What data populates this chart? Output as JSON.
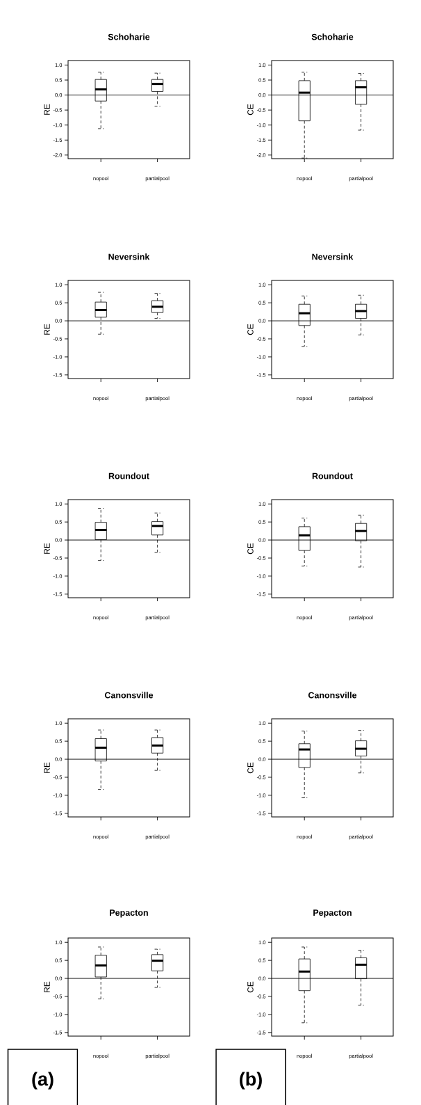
{
  "chart_data": [
    {
      "type": "box",
      "title": "Schoharie",
      "ylabel": "RE",
      "categories": [
        "nopool",
        "partialpool"
      ],
      "ylim": [
        -2.12,
        1.15
      ],
      "yticks": [
        {
          "value": -2.0,
          "label": "-2.0"
        },
        {
          "value": -1.5,
          "label": "-1.5"
        },
        {
          "value": -1.0,
          "label": "-1.0"
        },
        {
          "value": -0.5,
          "label": "-0.5"
        },
        {
          "value": 0.0,
          "label": "0.0"
        },
        {
          "value": 0.5,
          "label": "0.5"
        },
        {
          "value": 1.0,
          "label": "1.0"
        }
      ],
      "ref_lines": [
        {
          "axis": "y",
          "value": 0
        }
      ],
      "boxes": [
        {
          "low": -1.12,
          "q1": -0.2,
          "median": 0.19,
          "q3": 0.52,
          "high": 0.76
        },
        {
          "low": -0.37,
          "q1": 0.12,
          "median": 0.37,
          "q3": 0.52,
          "high": 0.73
        }
      ]
    },
    {
      "type": "box",
      "title": "Schoharie",
      "ylabel": "CE",
      "categories": [
        "nopool",
        "partialpool"
      ],
      "ylim": [
        -2.12,
        1.15
      ],
      "yticks": [
        {
          "value": -2.0,
          "label": "-2.0"
        },
        {
          "value": -1.5,
          "label": "-1.5"
        },
        {
          "value": -1.0,
          "label": "-1.0"
        },
        {
          "value": -0.5,
          "label": "-0.5"
        },
        {
          "value": 0.0,
          "label": "0.0"
        },
        {
          "value": 0.5,
          "label": "0.5"
        },
        {
          "value": 1.0,
          "label": "1.0"
        }
      ],
      "ref_lines": [
        {
          "axis": "y",
          "value": 0
        }
      ],
      "boxes": [
        {
          "low": -2.1,
          "q1": -0.86,
          "median": 0.08,
          "q3": 0.48,
          "high": 0.76
        },
        {
          "low": -1.17,
          "q1": -0.31,
          "median": 0.26,
          "q3": 0.48,
          "high": 0.72
        }
      ]
    },
    {
      "type": "box",
      "title": "Neversink",
      "ylabel": "RE",
      "categories": [
        "nopool",
        "partialpool"
      ],
      "ylim": [
        -1.6,
        1.12
      ],
      "yticks": [
        {
          "value": -1.5,
          "label": "-1.5"
        },
        {
          "value": -1.0,
          "label": "-1.0"
        },
        {
          "value": -0.5,
          "label": "-0.5"
        },
        {
          "value": 0.0,
          "label": "0.0"
        },
        {
          "value": 0.5,
          "label": "0.5"
        },
        {
          "value": 1.0,
          "label": "1.0"
        }
      ],
      "ref_lines": [
        {
          "axis": "y",
          "value": 0
        }
      ],
      "boxes": [
        {
          "low": -0.37,
          "q1": 0.1,
          "median": 0.3,
          "q3": 0.52,
          "high": 0.79
        },
        {
          "low": 0.07,
          "q1": 0.23,
          "median": 0.39,
          "q3": 0.56,
          "high": 0.76
        }
      ]
    },
    {
      "type": "box",
      "title": "Neversink",
      "ylabel": "CE",
      "categories": [
        "nopool",
        "partialpool"
      ],
      "ylim": [
        -1.6,
        1.12
      ],
      "yticks": [
        {
          "value": -1.5,
          "label": "-1.5"
        },
        {
          "value": -1.0,
          "label": "-1.0"
        },
        {
          "value": -0.5,
          "label": "-0.5"
        },
        {
          "value": 0.0,
          "label": "0.0"
        },
        {
          "value": 0.5,
          "label": "0.5"
        },
        {
          "value": 1.0,
          "label": "1.0"
        }
      ],
      "ref_lines": [
        {
          "axis": "y",
          "value": 0
        }
      ],
      "boxes": [
        {
          "low": -0.71,
          "q1": -0.13,
          "median": 0.21,
          "q3": 0.46,
          "high": 0.69
        },
        {
          "low": -0.39,
          "q1": 0.07,
          "median": 0.27,
          "q3": 0.46,
          "high": 0.71
        }
      ]
    },
    {
      "type": "box",
      "title": "Roundout",
      "ylabel": "RE",
      "categories": [
        "nopool",
        "partialpool"
      ],
      "ylim": [
        -1.6,
        1.12
      ],
      "yticks": [
        {
          "value": -1.5,
          "label": "-1.5"
        },
        {
          "value": -1.0,
          "label": "-1.0"
        },
        {
          "value": -0.5,
          "label": "-0.5"
        },
        {
          "value": 0.0,
          "label": "0.0"
        },
        {
          "value": 0.5,
          "label": "0.5"
        },
        {
          "value": 1.0,
          "label": "1.0"
        }
      ],
      "ref_lines": [
        {
          "axis": "y",
          "value": 0
        }
      ],
      "boxes": [
        {
          "low": -0.57,
          "q1": 0.01,
          "median": 0.28,
          "q3": 0.49,
          "high": 0.88
        },
        {
          "low": -0.34,
          "q1": 0.14,
          "median": 0.39,
          "q3": 0.51,
          "high": 0.75
        }
      ]
    },
    {
      "type": "box",
      "title": "Roundout",
      "ylabel": "CE",
      "categories": [
        "nopool",
        "partialpool"
      ],
      "ylim": [
        -1.6,
        1.12
      ],
      "yticks": [
        {
          "value": -1.5,
          "label": "-1.5"
        },
        {
          "value": -1.0,
          "label": "-1.0"
        },
        {
          "value": -0.5,
          "label": "-0.5"
        },
        {
          "value": 0.0,
          "label": "0.0"
        },
        {
          "value": 0.5,
          "label": "0.5"
        },
        {
          "value": 1.0,
          "label": "1.0"
        }
      ],
      "ref_lines": [
        {
          "axis": "y",
          "value": 0
        }
      ],
      "boxes": [
        {
          "low": -0.72,
          "q1": -0.29,
          "median": 0.13,
          "q3": 0.37,
          "high": 0.61
        },
        {
          "low": -0.75,
          "q1": -0.02,
          "median": 0.25,
          "q3": 0.46,
          "high": 0.69
        }
      ]
    },
    {
      "type": "box",
      "title": "Canonsville",
      "ylabel": "RE",
      "categories": [
        "nopool",
        "partialpool"
      ],
      "ylim": [
        -1.6,
        1.12
      ],
      "yticks": [
        {
          "value": -1.5,
          "label": "-1.5"
        },
        {
          "value": -1.0,
          "label": "-1.0"
        },
        {
          "value": -0.5,
          "label": "-0.5"
        },
        {
          "value": 0.0,
          "label": "0.0"
        },
        {
          "value": 0.5,
          "label": "0.5"
        },
        {
          "value": 1.0,
          "label": "1.0"
        }
      ],
      "ref_lines": [
        {
          "axis": "y",
          "value": 0
        }
      ],
      "boxes": [
        {
          "low": -0.84,
          "q1": -0.05,
          "median": 0.32,
          "q3": 0.57,
          "high": 0.81
        },
        {
          "low": -0.31,
          "q1": 0.17,
          "median": 0.38,
          "q3": 0.6,
          "high": 0.81
        }
      ]
    },
    {
      "type": "box",
      "title": "Canonsville",
      "ylabel": "CE",
      "categories": [
        "nopool",
        "partialpool"
      ],
      "ylim": [
        -1.6,
        1.12
      ],
      "yticks": [
        {
          "value": -1.5,
          "label": "-1.5"
        },
        {
          "value": -1.0,
          "label": "-1.0"
        },
        {
          "value": -0.5,
          "label": "-0.5"
        },
        {
          "value": 0.0,
          "label": "0.0"
        },
        {
          "value": 0.5,
          "label": "0.5"
        },
        {
          "value": 1.0,
          "label": "1.0"
        }
      ],
      "ref_lines": [
        {
          "axis": "y",
          "value": 0
        }
      ],
      "boxes": [
        {
          "low": -1.07,
          "q1": -0.23,
          "median": 0.27,
          "q3": 0.43,
          "high": 0.78
        },
        {
          "low": -0.38,
          "q1": 0.09,
          "median": 0.29,
          "q3": 0.51,
          "high": 0.8
        }
      ]
    },
    {
      "type": "box",
      "title": "Pepacton",
      "ylabel": "RE",
      "categories": [
        "nopool",
        "partialpool"
      ],
      "ylim": [
        -1.6,
        1.12
      ],
      "yticks": [
        {
          "value": -1.5,
          "label": "-1.5"
        },
        {
          "value": -1.0,
          "label": "-1.0"
        },
        {
          "value": -0.5,
          "label": "-0.5"
        },
        {
          "value": 0.0,
          "label": "0.0"
        },
        {
          "value": 0.5,
          "label": "0.5"
        },
        {
          "value": 1.0,
          "label": "1.0"
        }
      ],
      "ref_lines": [
        {
          "axis": "y",
          "value": 0
        }
      ],
      "annotations": [
        "(a)"
      ],
      "boxes": [
        {
          "low": -0.57,
          "q1": 0.04,
          "median": 0.36,
          "q3": 0.64,
          "high": 0.87
        },
        {
          "low": -0.25,
          "q1": 0.21,
          "median": 0.49,
          "q3": 0.66,
          "high": 0.81
        }
      ]
    },
    {
      "type": "box",
      "title": "Pepacton",
      "ylabel": "CE",
      "categories": [
        "nopool",
        "partialpool"
      ],
      "ylim": [
        -1.6,
        1.12
      ],
      "yticks": [
        {
          "value": -1.5,
          "label": "-1.5"
        },
        {
          "value": -1.0,
          "label": "-1.0"
        },
        {
          "value": -0.5,
          "label": "-0.5"
        },
        {
          "value": 0.0,
          "label": "0.0"
        },
        {
          "value": 0.5,
          "label": "0.5"
        },
        {
          "value": 1.0,
          "label": "1.0"
        }
      ],
      "ref_lines": [
        {
          "axis": "y",
          "value": 0
        }
      ],
      "annotations": [
        "(b)"
      ],
      "boxes": [
        {
          "low": -1.23,
          "q1": -0.34,
          "median": 0.19,
          "q3": 0.54,
          "high": 0.87
        },
        {
          "low": -0.74,
          "q1": -0.01,
          "median": 0.38,
          "q3": 0.57,
          "high": 0.78
        }
      ]
    }
  ]
}
